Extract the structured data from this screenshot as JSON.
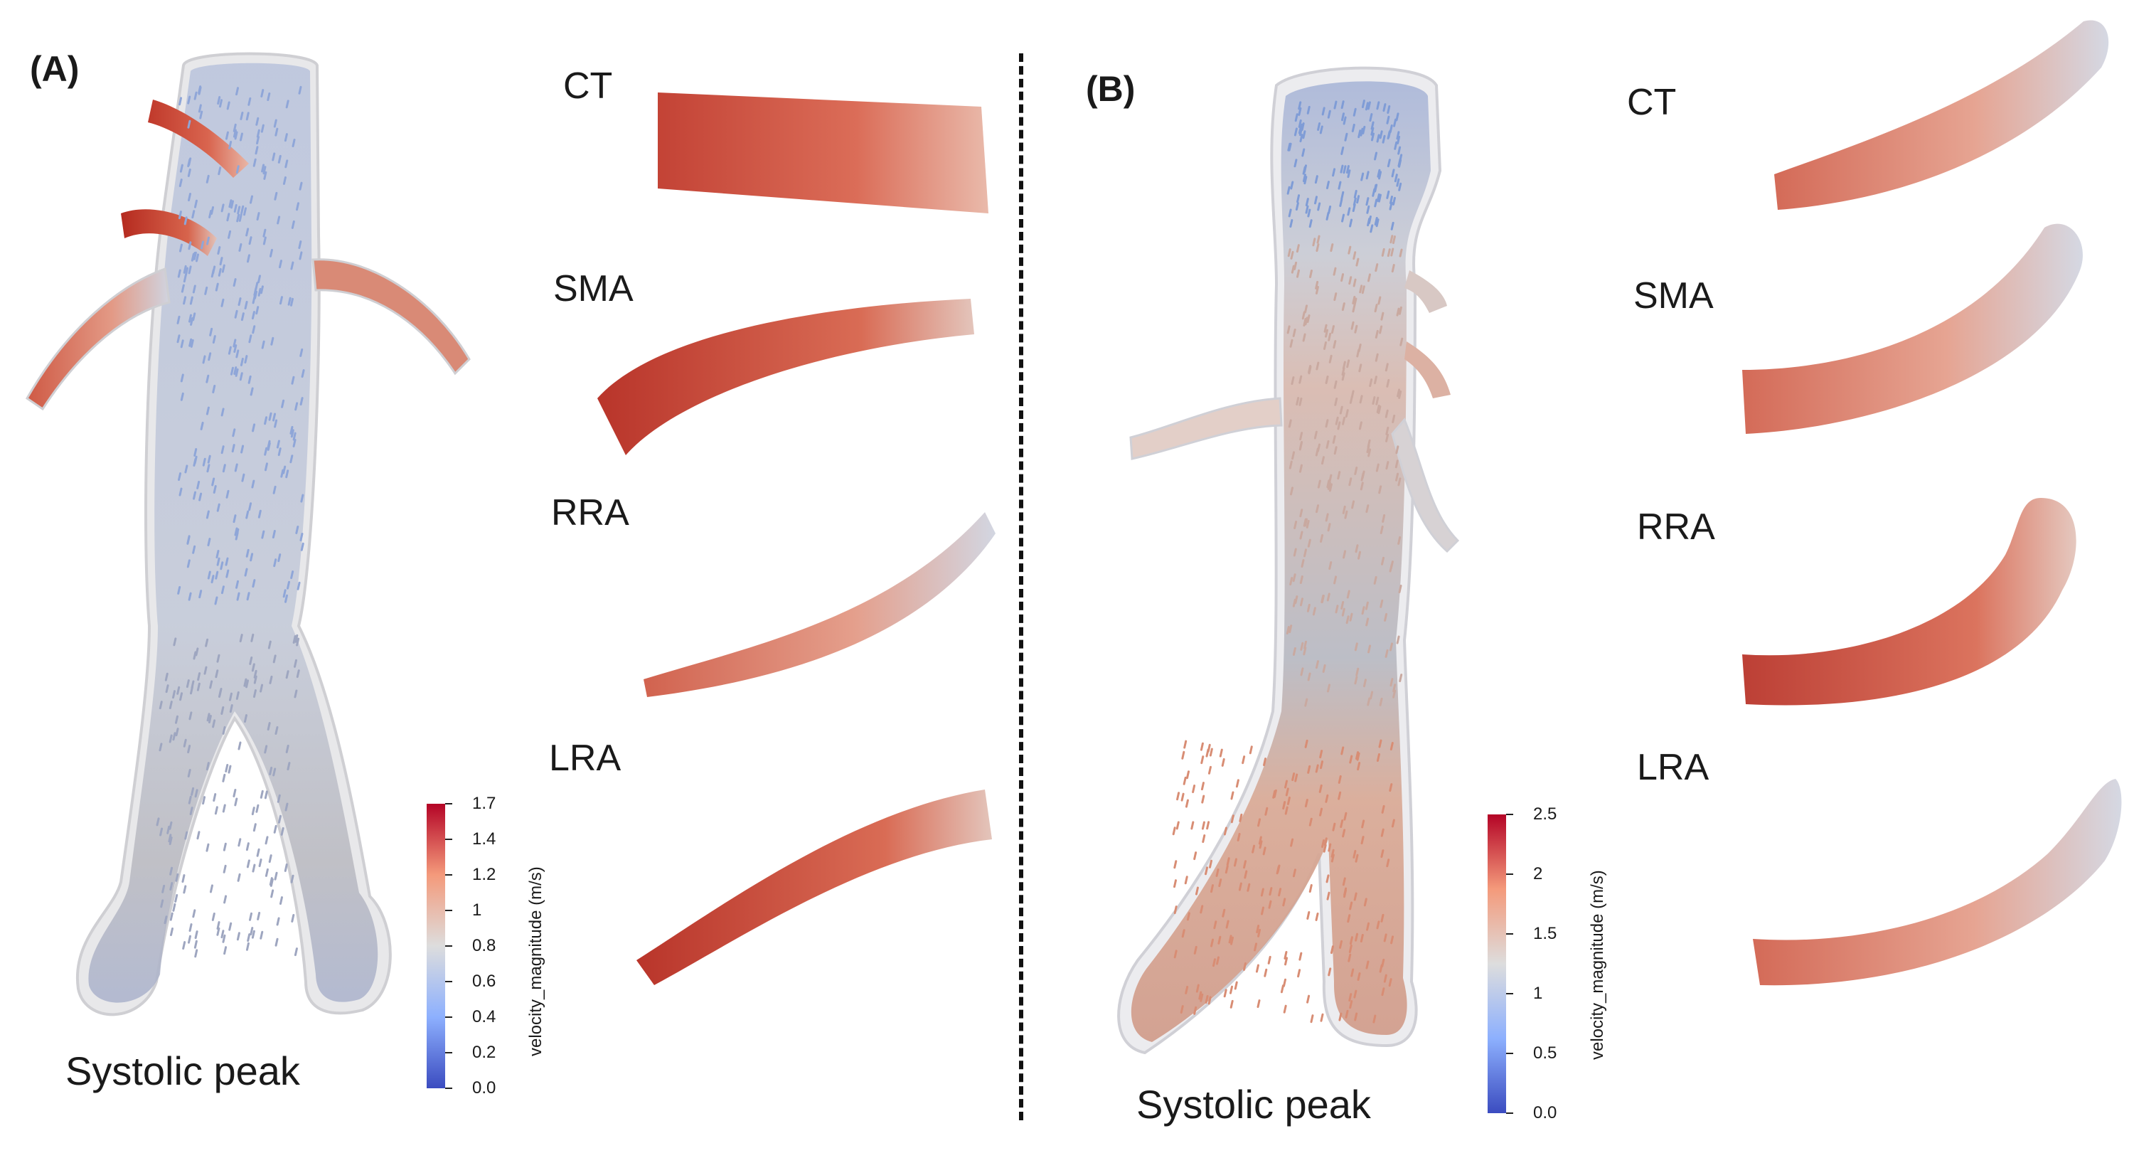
{
  "panel_a": {
    "label": "(A)",
    "caption": "Systolic peak",
    "vessels": [
      "CT",
      "SMA",
      "RRA",
      "LRA"
    ],
    "colorbar": {
      "title": "velocity_magnitude (m/s)",
      "ticks": [
        "1.7",
        "1.4",
        "1.2",
        "1",
        "0.8",
        "0.6",
        "0.4",
        "0.2",
        "0.0"
      ],
      "range": [
        0.0,
        1.7
      ]
    }
  },
  "panel_b": {
    "label": "(B)",
    "caption": "Systolic peak",
    "vessels": [
      "CT",
      "SMA",
      "RRA",
      "LRA"
    ],
    "colorbar": {
      "title": "velocity_magnitude (m/s)",
      "ticks": [
        "2.5",
        "2",
        "1.5",
        "1",
        "0.5",
        "0.0"
      ],
      "range": [
        0.0,
        2.5
      ]
    }
  },
  "colormap": {
    "low": "#3b4cc0",
    "mid": "#dddddd",
    "high": "#b40426"
  }
}
